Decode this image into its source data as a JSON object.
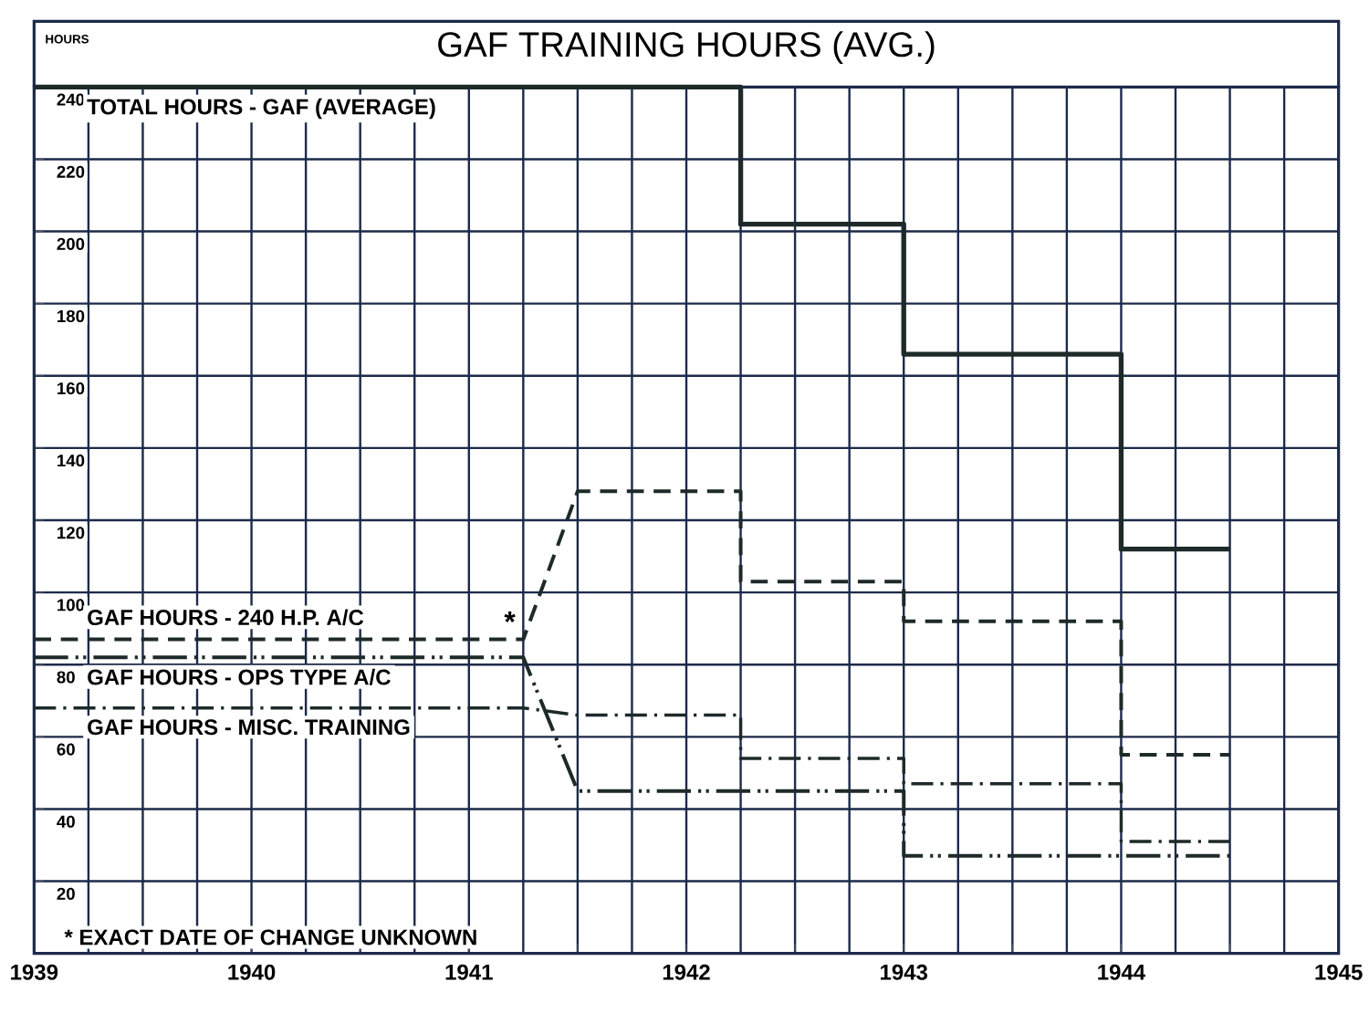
{
  "chart_data": {
    "type": "line",
    "title": "GAF TRAINING HOURS (AVG.)",
    "ylabel": "HOURS",
    "xlim": [
      1939,
      1945
    ],
    "ylim": [
      0,
      240
    ],
    "xticks": [
      1939,
      {
        "value": 1939.5,
        "label": null
      },
      1940,
      {
        "value": 1940.5,
        "label": null
      },
      1941,
      {
        "value": 1941.5,
        "label": null
      },
      1942,
      {
        "value": 1942.5,
        "label": null
      },
      1943,
      {
        "value": 1943.5,
        "label": null
      },
      1944,
      {
        "value": 1944.5,
        "label": null
      },
      1945
    ],
    "yticks": [
      20,
      40,
      60,
      80,
      100,
      120,
      140,
      160,
      180,
      200,
      220,
      240
    ],
    "grid": true,
    "legend": false,
    "series": [
      {
        "name": "TOTAL HOURS - GAF (AVERAGE)",
        "color": "#1e2a2a",
        "line_style": "solid",
        "x": [
          1939,
          1942.25,
          1942.25,
          1943,
          1943,
          1944,
          1944,
          1944.5
        ],
        "values": [
          240,
          240,
          202,
          202,
          166,
          166,
          112,
          112
        ]
      },
      {
        "name": "GAF HOURS - 240 H.P. A/C",
        "color": "#1e2a2a",
        "line_style": "dashed",
        "x": [
          1939,
          1941.25,
          1941.5,
          1942.25,
          1942.25,
          1943,
          1943,
          1944,
          1944,
          1944.5
        ],
        "values": [
          87,
          87,
          128,
          128,
          103,
          103,
          92,
          92,
          55,
          55
        ]
      },
      {
        "name": "GAF HOURS - OPS TYPE A/C",
        "color": "#1e2a2a",
        "line_style": "dashdotdot",
        "x": [
          1939,
          1941.25,
          1941.5,
          1943,
          1943,
          1944.5
        ],
        "values": [
          82,
          82,
          45,
          45,
          27,
          27
        ]
      },
      {
        "name": "GAF HOURS - MISC. TRAINING",
        "color": "#1e2a2a",
        "line_style": "dashdot",
        "x": [
          1939,
          1941.25,
          1941.5,
          1942.25,
          1942.25,
          1943,
          1943,
          1944,
          1944,
          1944.5
        ],
        "values": [
          68,
          68,
          66,
          66,
          54,
          54,
          47,
          47,
          31,
          31
        ]
      }
    ],
    "annotations": [
      {
        "text": "*",
        "x": 1941.25,
        "y": 87
      },
      "* EXACT DATE OF CHANGE UNKNOWN"
    ]
  }
}
